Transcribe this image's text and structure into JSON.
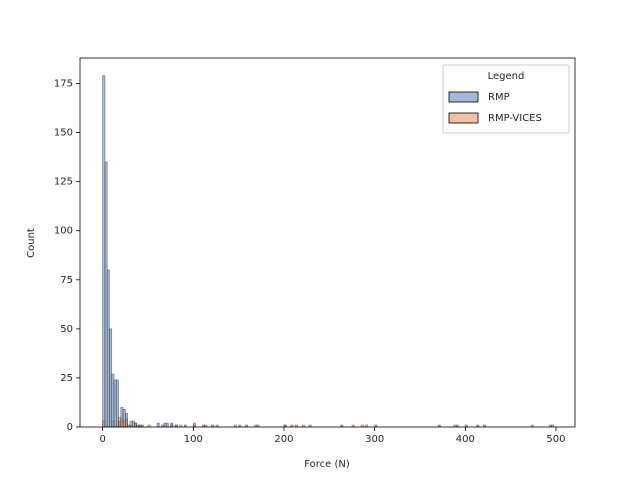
{
  "chart_data": {
    "type": "histogram",
    "xlabel": "Force (N)",
    "ylabel": "Count",
    "bins": [
      0,
      2.5,
      5,
      7.5,
      10,
      12.5,
      15,
      17.5,
      20,
      22.5,
      25,
      27.5,
      30,
      32.5,
      35,
      37.5,
      40,
      42.5,
      45,
      47.5,
      50,
      52.5,
      55,
      57.5,
      60,
      62.5,
      65,
      67.5,
      70,
      72.5,
      75,
      77.5,
      80,
      82.5,
      85,
      87.5,
      90,
      92.5,
      95,
      97.5,
      100,
      102.5,
      105,
      107.5,
      110,
      112.5,
      115,
      117.5,
      120,
      122.5,
      125,
      127.5,
      130,
      132.5,
      135,
      137.5,
      140,
      142.5,
      145,
      147.5,
      150,
      152.5,
      155,
      157.5,
      160,
      162.5,
      165,
      167.5,
      170,
      172.5,
      175,
      177.5,
      180,
      182.5,
      185,
      187.5,
      190,
      192.5,
      195,
      197.5,
      200,
      202.5,
      205,
      207.5,
      210,
      212.5,
      215,
      217.5,
      220,
      222.5,
      225,
      227.5,
      230,
      232.5,
      235,
      237.5,
      240,
      242.5,
      245,
      247.5,
      250,
      252.5,
      255,
      257.5,
      260,
      262.5,
      265,
      267.5,
      270,
      272.5,
      275,
      277.5,
      280,
      282.5,
      285,
      287.5,
      290,
      292.5,
      295,
      297.5,
      300,
      302.5,
      305,
      307.5,
      310,
      312.5,
      315,
      317.5,
      320,
      322.5,
      325,
      327.5,
      330,
      332.5,
      335,
      337.5,
      340,
      342.5,
      345,
      347.5,
      350,
      352.5,
      355,
      357.5,
      360,
      362.5,
      365,
      367.5,
      370,
      372.5,
      375,
      377.5,
      380,
      382.5,
      385,
      387.5,
      390,
      392.5,
      395,
      397.5,
      400,
      402.5,
      405,
      407.5,
      410,
      412.5,
      415,
      417.5,
      420,
      422.5,
      425,
      427.5,
      430,
      432.5,
      435,
      437.5,
      440,
      442.5,
      445,
      447.5,
      450,
      452.5,
      455,
      457.5,
      460,
      462.5,
      465,
      467.5,
      470,
      472.5,
      475,
      477.5,
      480,
      482.5,
      485,
      487.5,
      490,
      492.5,
      495,
      497.5,
      500
    ],
    "series": [
      {
        "name": "RMP",
        "color": "#4c72b0",
        "values": [
          179,
          135,
          80,
          50,
          27,
          24,
          24,
          3,
          10,
          9,
          7,
          1,
          1,
          3,
          2,
          1,
          1,
          1,
          0,
          0,
          0,
          0,
          0,
          0,
          2,
          0,
          1,
          2,
          2,
          0,
          2,
          0,
          1,
          0,
          0,
          0,
          1,
          0,
          0,
          0,
          1,
          0,
          0,
          0,
          1,
          0,
          0,
          0,
          1,
          0,
          0,
          0,
          0,
          0,
          0,
          0,
          0,
          0,
          0,
          0,
          1,
          0,
          0,
          1,
          0,
          0,
          0,
          0,
          0,
          0,
          0,
          0,
          0,
          0,
          0,
          0,
          0,
          0,
          0,
          0,
          1,
          0,
          0,
          0,
          0,
          0,
          0,
          0,
          0,
          0,
          0,
          0,
          0,
          0,
          0,
          0,
          0,
          0,
          0,
          0,
          0,
          0,
          0,
          0,
          0,
          1,
          0,
          0,
          0,
          0,
          0,
          0,
          0,
          0,
          0,
          0,
          0,
          0,
          0,
          0,
          1,
          0,
          0,
          0,
          0,
          0,
          0,
          0,
          0,
          0,
          0,
          0,
          0,
          0,
          0,
          0,
          0,
          0,
          0,
          0,
          0,
          0,
          0,
          0,
          0,
          0,
          0,
          0,
          1,
          0,
          0,
          0,
          0,
          0,
          0,
          0,
          0,
          0,
          0,
          0,
          1,
          0,
          0,
          0,
          0,
          1,
          0,
          0,
          1,
          0,
          0,
          0,
          0,
          0,
          0,
          0,
          0,
          0,
          0,
          0,
          0,
          0,
          0,
          0,
          0,
          0,
          0,
          0,
          0,
          0,
          0,
          0,
          0,
          0,
          0,
          0,
          0,
          0,
          0,
          0
        ]
      },
      {
        "name": "RMP-VICES",
        "color": "#dd8452",
        "values": [
          3,
          0,
          0,
          0,
          3,
          0,
          0,
          5,
          4,
          3,
          4,
          0,
          3,
          0,
          2,
          0,
          1,
          0,
          0,
          0,
          1,
          0,
          0,
          0,
          0,
          0,
          0,
          0,
          0,
          0,
          1,
          0,
          1,
          0,
          1,
          0,
          0,
          0,
          0,
          0,
          2,
          0,
          0,
          0,
          0,
          1,
          0,
          0,
          0,
          0,
          1,
          0,
          0,
          0,
          0,
          0,
          0,
          0,
          1,
          0,
          0,
          0,
          0,
          0,
          0,
          0,
          0,
          1,
          1,
          0,
          0,
          0,
          0,
          0,
          0,
          0,
          0,
          0,
          0,
          0,
          1,
          0,
          0,
          1,
          0,
          1,
          0,
          0,
          1,
          0,
          0,
          1,
          0,
          0,
          0,
          0,
          0,
          0,
          0,
          0,
          0,
          0,
          0,
          0,
          0,
          0,
          0,
          0,
          0,
          0,
          1,
          0,
          0,
          0,
          1,
          0,
          1,
          0,
          0,
          0,
          0,
          0,
          0,
          0,
          0,
          0,
          0,
          0,
          0,
          0,
          0,
          0,
          0,
          0,
          0,
          0,
          0,
          0,
          0,
          0,
          0,
          0,
          0,
          0,
          0,
          0,
          0,
          0,
          0,
          0,
          0,
          0,
          0,
          0,
          0,
          1,
          1,
          0,
          0,
          0,
          0,
          0,
          0,
          0,
          0,
          0,
          0,
          0,
          0,
          0,
          0,
          0,
          0,
          0,
          0,
          0,
          0,
          0,
          0,
          0,
          0,
          0,
          0,
          0,
          0,
          0,
          0,
          0,
          0,
          1,
          0,
          0,
          0,
          0,
          0,
          0,
          0,
          1,
          1,
          0
        ]
      }
    ],
    "xlim": [
      -25,
      521
    ],
    "ylim": [
      0,
      188
    ],
    "xticks": [
      0,
      100,
      200,
      300,
      400,
      500
    ],
    "yticks": [
      0,
      25,
      50,
      75,
      100,
      125,
      150,
      175
    ],
    "legend_title": "Legend",
    "legend_position": "upper right"
  }
}
